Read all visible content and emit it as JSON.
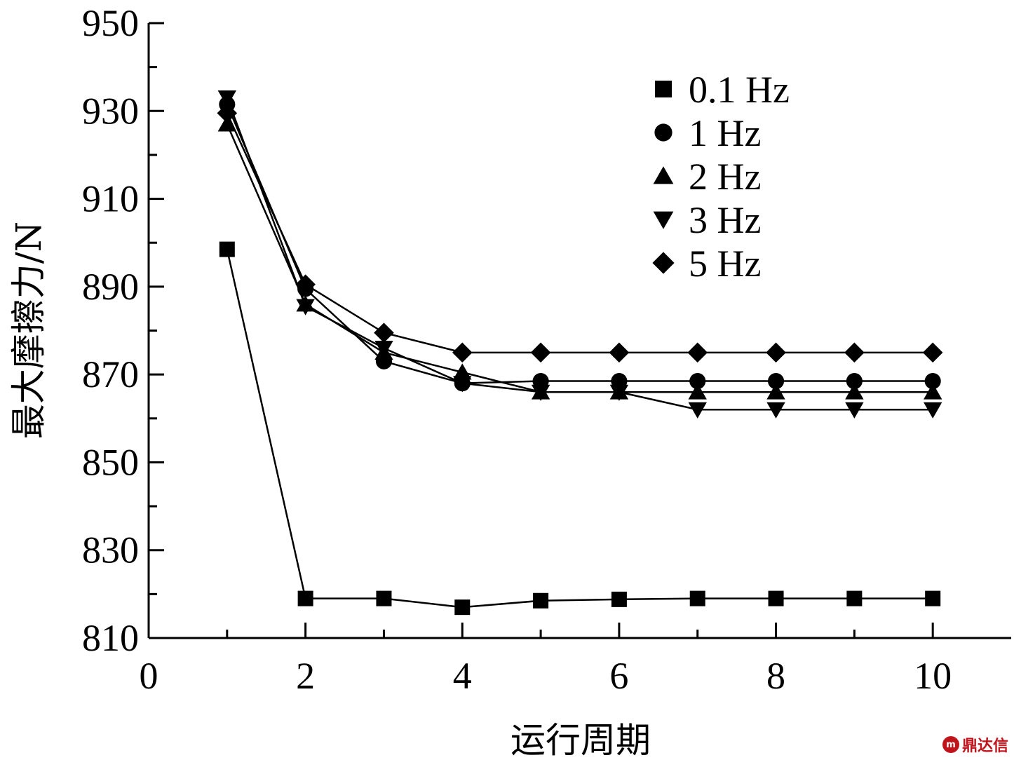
{
  "chart_data": {
    "type": "line",
    "xlabel": "运行周期",
    "ylabel": "最大摩擦力/N",
    "xlim": [
      0,
      11
    ],
    "ylim": [
      810,
      950
    ],
    "xticks": [
      0,
      2,
      4,
      6,
      8,
      10
    ],
    "yticks": [
      810,
      830,
      850,
      870,
      890,
      910,
      930,
      950
    ],
    "x": [
      1,
      2,
      3,
      4,
      5,
      6,
      7,
      8,
      9,
      10
    ],
    "legend_position": "top-right",
    "grid": false,
    "series": [
      {
        "name": "0.1 Hz",
        "marker": "square",
        "values": [
          898.5,
          819,
          819,
          817,
          818.5,
          818.8,
          819,
          819,
          819,
          819
        ]
      },
      {
        "name": "1 Hz",
        "marker": "circle",
        "values": [
          931.5,
          889.5,
          873,
          868,
          868.5,
          868.5,
          868.5,
          868.5,
          868.5,
          868.5
        ]
      },
      {
        "name": "2 Hz",
        "marker": "triangle-up",
        "values": [
          927,
          886,
          875,
          870.5,
          866,
          866,
          866,
          866,
          866,
          866
        ]
      },
      {
        "name": "3 Hz",
        "marker": "triangle-down",
        "values": [
          933,
          885.5,
          876,
          868,
          866,
          866,
          862,
          862,
          862,
          862
        ]
      },
      {
        "name": "5 Hz",
        "marker": "diamond",
        "values": [
          929.5,
          890.5,
          879.5,
          875,
          875,
          875,
          875,
          875,
          875,
          875
        ]
      }
    ]
  },
  "watermark": {
    "logo_text": "m",
    "text": "鼎达信"
  }
}
